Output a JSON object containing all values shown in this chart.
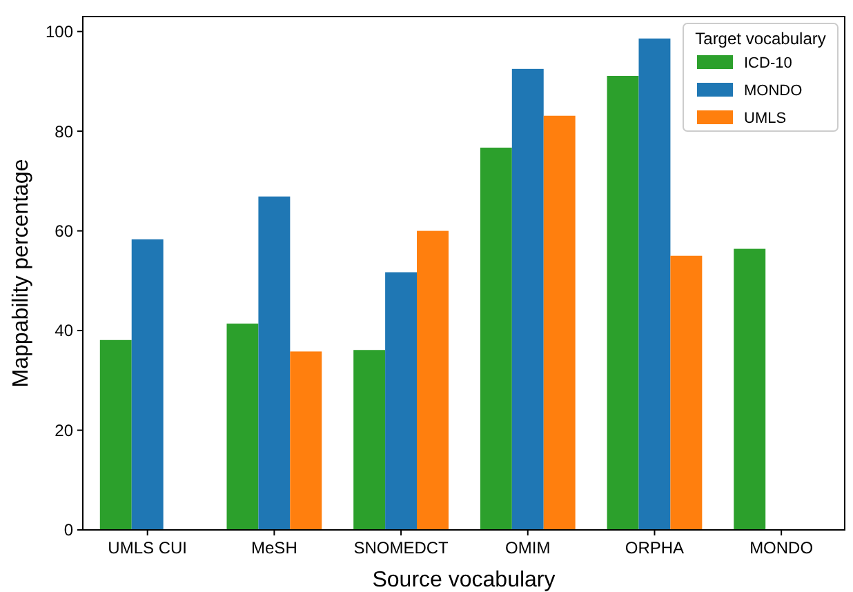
{
  "chart_data": {
    "type": "bar",
    "xlabel": "Source vocabulary",
    "ylabel": "Mappability percentage",
    "legend_title": "Target vocabulary",
    "categories": [
      "UMLS CUI",
      "MeSH",
      "SNOMEDCT",
      "OMIM",
      "ORPHA",
      "MONDO"
    ],
    "series": [
      {
        "name": "ICD-10",
        "color": "#2ca02c",
        "values": [
          38.1,
          41.4,
          36.1,
          76.7,
          91.1,
          56.4
        ]
      },
      {
        "name": "MONDO",
        "color": "#1f77b4",
        "values": [
          58.3,
          66.9,
          51.7,
          92.5,
          98.6,
          null
        ]
      },
      {
        "name": "UMLS",
        "color": "#ff7f0e",
        "values": [
          null,
          35.8,
          60.0,
          83.1,
          55.0,
          null
        ]
      }
    ],
    "ylim": [
      0,
      103
    ],
    "yticks": [
      0,
      20,
      40,
      60,
      80,
      100
    ],
    "grid": false,
    "legend": "top right"
  }
}
